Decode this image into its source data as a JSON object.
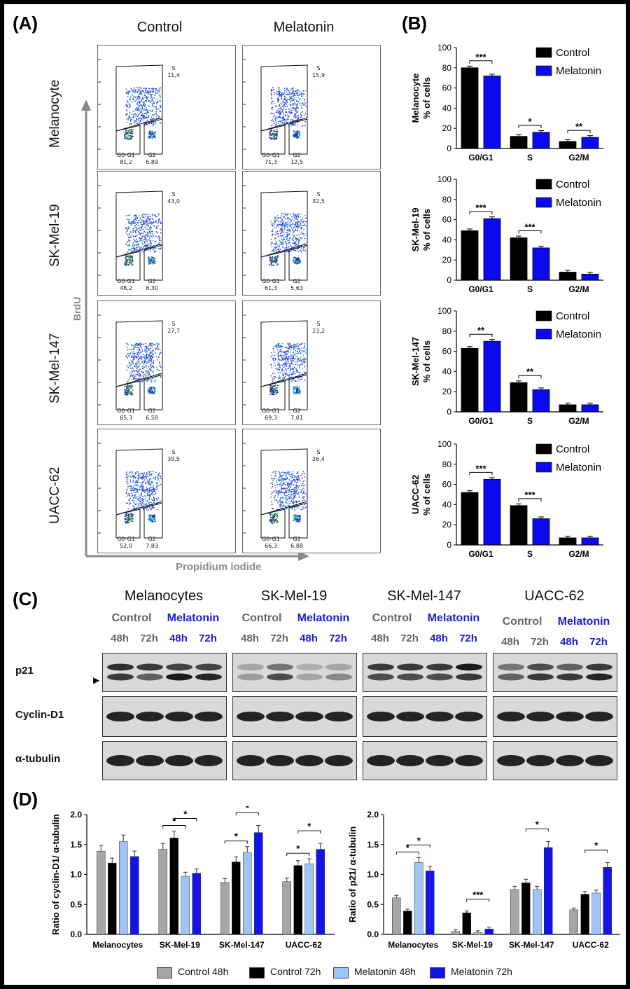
{
  "panels": {
    "a": "(A)",
    "b": "(B)",
    "c": "(C)",
    "d": "(D)"
  },
  "panel_a": {
    "columns": [
      "Control",
      "Melatonin"
    ],
    "rows": [
      "Melanocyte",
      "SK-Mel-19",
      "SK-Mel-147",
      "UACC-62"
    ],
    "y_axis": "BrdU",
    "x_axis": "Propidium iodide",
    "gate_labels": {
      "s": "S",
      "g0g1": "G0-G1",
      "g2": "G2"
    },
    "values": [
      {
        "control": {
          "s": "11,4",
          "g0g1": "81,2",
          "g2": "6,89"
        },
        "melatonin": {
          "s": "15,9",
          "g0g1": "71,3",
          "g2": "12,5"
        }
      },
      {
        "control": {
          "s": "43,0",
          "g0g1": "48,2",
          "g2": "8,30"
        },
        "melatonin": {
          "s": "32,5",
          "g0g1": "61,3",
          "g2": "5,63"
        }
      },
      {
        "control": {
          "s": "27,7",
          "g0g1": "65,3",
          "g2": "6,58"
        },
        "melatonin": {
          "s": "23,2",
          "g0g1": "69,3",
          "g2": "7,01"
        }
      },
      {
        "control": {
          "s": "39,5",
          "g0g1": "52,0",
          "g2": "7,83"
        },
        "melatonin": {
          "s": "26,4",
          "g0g1": "66,3",
          "g2": "6,88"
        }
      }
    ]
  },
  "chart_data": [
    {
      "type": "bar",
      "panel": "B1",
      "ylabel": [
        "Melanocyte",
        "% of cells"
      ],
      "categories": [
        "G0/G1",
        "S",
        "G2/M"
      ],
      "ylim": [
        0,
        100
      ],
      "yticks": [
        0,
        20,
        40,
        60,
        80,
        100
      ],
      "series": [
        {
          "name": "Control",
          "values": [
            80,
            12,
            7
          ]
        },
        {
          "name": "Melatonin",
          "values": [
            72,
            16,
            11
          ]
        }
      ],
      "significance": [
        {
          "category": "G0/G1",
          "label": "***"
        },
        {
          "category": "S",
          "label": "*"
        },
        {
          "category": "G2/M",
          "label": "**"
        }
      ]
    },
    {
      "type": "bar",
      "panel": "B2",
      "ylabel": [
        "SK-Mel-19",
        "% of cells"
      ],
      "categories": [
        "G0/G1",
        "S",
        "G2/M"
      ],
      "ylim": [
        0,
        100
      ],
      "yticks": [
        0,
        20,
        40,
        60,
        80,
        100
      ],
      "series": [
        {
          "name": "Control",
          "values": [
            49,
            42,
            8
          ]
        },
        {
          "name": "Melatonin",
          "values": [
            61,
            32,
            6
          ]
        }
      ],
      "significance": [
        {
          "category": "G0/G1",
          "label": "***"
        },
        {
          "category": "S",
          "label": "***"
        }
      ]
    },
    {
      "type": "bar",
      "panel": "B3",
      "ylabel": [
        "SK-Mel-147",
        "% of cells"
      ],
      "categories": [
        "G0/G1",
        "S",
        "G2/M"
      ],
      "ylim": [
        0,
        100
      ],
      "yticks": [
        0,
        20,
        40,
        60,
        80,
        100
      ],
      "series": [
        {
          "name": "Control",
          "values": [
            63,
            29,
            7
          ]
        },
        {
          "name": "Melatonin",
          "values": [
            70,
            22,
            7
          ]
        }
      ],
      "significance": [
        {
          "category": "G0/G1",
          "label": "**"
        },
        {
          "category": "S",
          "label": "**"
        }
      ]
    },
    {
      "type": "bar",
      "panel": "B4",
      "ylabel": [
        "UACC-62",
        "% of cells"
      ],
      "categories": [
        "G0/G1",
        "S",
        "G2/M"
      ],
      "ylim": [
        0,
        100
      ],
      "yticks": [
        0,
        20,
        40,
        60,
        80,
        100
      ],
      "series": [
        {
          "name": "Control",
          "values": [
            52,
            39,
            7
          ]
        },
        {
          "name": "Melatonin",
          "values": [
            65,
            26,
            7
          ]
        }
      ],
      "significance": [
        {
          "category": "G0/G1",
          "label": "***"
        },
        {
          "category": "S",
          "label": "***"
        }
      ]
    },
    {
      "type": "bar",
      "panel": "D1",
      "ylabel": "Ratio of cyclin-D1/ α-tubulin",
      "categories": [
        "Melanocytes",
        "SK-Mel-19",
        "SK-Mel-147",
        "UACC-62"
      ],
      "ylim": [
        0,
        2.0
      ],
      "yticks": [
        "0.0",
        "0.5",
        "1.0",
        "1.5",
        "2.0"
      ],
      "series": [
        {
          "name": "Control 48h",
          "values": [
            1.39,
            1.42,
            0.87,
            0.88
          ]
        },
        {
          "name": "Control 72h",
          "values": [
            1.19,
            1.61,
            1.21,
            1.15
          ]
        },
        {
          "name": "Melatonin 48h",
          "values": [
            1.55,
            0.97,
            1.37,
            1.18
          ]
        },
        {
          "name": "Melatonin 72h",
          "values": [
            1.3,
            1.02,
            1.7,
            1.42
          ]
        }
      ],
      "significance": [
        {
          "category": "SK-Mel-19",
          "pair": [
            0,
            2
          ],
          "label": "*"
        },
        {
          "category": "SK-Mel-19",
          "pair": [
            1,
            3
          ],
          "label": "*"
        },
        {
          "category": "SK-Mel-147",
          "pair": [
            0,
            2
          ],
          "label": "*"
        },
        {
          "category": "SK-Mel-147",
          "pair": [
            1,
            3
          ],
          "label": "*"
        },
        {
          "category": "UACC-62",
          "pair": [
            0,
            2
          ],
          "label": "*"
        },
        {
          "category": "UACC-62",
          "pair": [
            1,
            3
          ],
          "label": "*"
        }
      ]
    },
    {
      "type": "bar",
      "panel": "D2",
      "ylabel": "Ratio of p21/ α-tubulin",
      "categories": [
        "Melanocytes",
        "SK-Mel-19",
        "SK-Mel-147",
        "UACC-62"
      ],
      "ylim": [
        0,
        2.0
      ],
      "yticks": [
        "0.0",
        "0.5",
        "1.0",
        "1.5",
        "2.0"
      ],
      "series": [
        {
          "name": "Control 48h",
          "values": [
            0.61,
            0.05,
            0.75,
            0.41
          ]
        },
        {
          "name": "Control 72h",
          "values": [
            0.39,
            0.36,
            0.86,
            0.67
          ]
        },
        {
          "name": "Melatonin 48h",
          "values": [
            1.2,
            0.03,
            0.75,
            0.69
          ]
        },
        {
          "name": "Melatonin 72h",
          "values": [
            1.06,
            0.09,
            1.45,
            1.12
          ]
        }
      ],
      "significance": [
        {
          "category": "Melanocytes",
          "pair": [
            0,
            2
          ],
          "label": "*"
        },
        {
          "category": "Melanocytes",
          "pair": [
            1,
            3
          ],
          "label": "*"
        },
        {
          "category": "SK-Mel-19",
          "pair": [
            1,
            3
          ],
          "label": "***"
        },
        {
          "category": "SK-Mel-147",
          "pair": [
            1,
            3
          ],
          "label": "*"
        },
        {
          "category": "UACC-62",
          "pair": [
            1,
            3
          ],
          "label": "*"
        }
      ]
    }
  ],
  "panel_c": {
    "groups": [
      "Melanocytes",
      "SK-Mel-19",
      "SK-Mel-147",
      "UACC-62"
    ],
    "conditions": [
      "Control",
      "Melatonin"
    ],
    "timepoints": [
      "48h",
      "72h",
      "48h",
      "72h"
    ],
    "proteins": [
      "p21",
      "Cyclin-D1",
      "α-tubulin"
    ],
    "arrow": "▶"
  },
  "legend_d": [
    "Control 48h",
    "Control 72h",
    "Melatonin 48h",
    "Melatonin 72h"
  ],
  "colors": {
    "control_b": "#000000",
    "melatonin_b": "#0a0af0",
    "c48": "#a6a6a6",
    "c72": "#000000",
    "m48": "#9fc4f6",
    "m72": "#1414e6",
    "grey_text": "#666666",
    "blue_text": "#1c1cd6"
  }
}
